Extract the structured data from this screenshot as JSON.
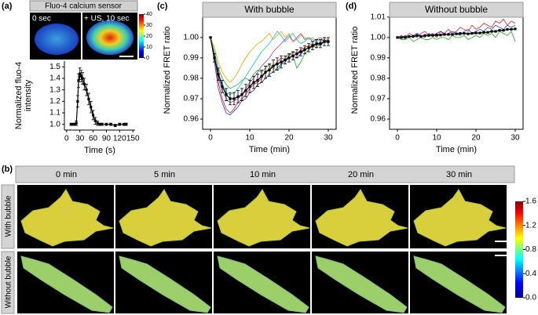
{
  "chart_data": [
    {
      "type": "line",
      "panel_label": "(a)",
      "x_label": "Time (s)",
      "y_label": [
        "Normalized fluo-4",
        "intensity"
      ],
      "x": [
        10,
        15,
        20,
        22,
        25,
        27,
        30,
        33,
        36,
        40,
        45,
        50,
        55,
        60,
        65,
        70,
        75,
        80,
        90,
        100,
        110,
        120,
        130,
        135
      ],
      "series": [
        {
          "color": "#000000",
          "marker": "square",
          "values": [
            1.0,
            1.0,
            1.0,
            1.01,
            1.2,
            1.38,
            1.44,
            1.42,
            1.4,
            1.35,
            1.3,
            1.22,
            1.15,
            1.08,
            1.03,
            1.01,
            1.0,
            1.0,
            1.0,
            1.0,
            0.99,
            1.0,
            1.0,
            1.0
          ],
          "errors": [
            0.01,
            0.01,
            0.01,
            0.02,
            0.05,
            0.06,
            0.05,
            0.05,
            0.05,
            0.05,
            0.05,
            0.05,
            0.05,
            0.04,
            0.03,
            0.02,
            0.01,
            0.01,
            0.01,
            0.01,
            0.01,
            0.01,
            0.01,
            0.01
          ]
        }
      ],
      "xlim": [
        -5,
        155
      ],
      "xticks": [
        0,
        30,
        60,
        90,
        120,
        150
      ],
      "ylim": [
        0.95,
        1.55
      ],
      "yticks": [
        {
          "value": 1.0,
          "label": "1.0"
        },
        1.1,
        1.2,
        1.3,
        1.4,
        1.5
      ],
      "box": false
    },
    {
      "type": "line",
      "panel_label": "(c)",
      "title": "With bubble",
      "x_label": "Time (min)",
      "y_label": "Normalized FRET ratio",
      "x": [
        0,
        1,
        2,
        3,
        4,
        5,
        6,
        7,
        8,
        9,
        10,
        11,
        12,
        13,
        14,
        15,
        16,
        17,
        18,
        19,
        20,
        21,
        22,
        23,
        24,
        25,
        26,
        27,
        28,
        29,
        30
      ],
      "series": [
        {
          "color": "#e41a1c",
          "values": [
            1.0,
            0.99,
            0.978,
            0.97,
            0.965,
            0.963,
            0.965,
            0.968,
            0.97,
            0.972,
            0.975,
            0.977,
            0.978,
            0.98,
            0.983,
            0.985,
            0.986,
            0.988,
            0.99,
            0.989,
            0.991,
            0.993,
            0.992,
            0.994,
            0.995,
            0.996,
            0.997,
            0.996,
            0.998,
            0.999,
            0.998
          ]
        },
        {
          "color": "#1f3fbf",
          "values": [
            1.0,
            0.988,
            0.975,
            0.968,
            0.963,
            0.962,
            0.964,
            0.966,
            0.969,
            0.97,
            0.973,
            0.974,
            0.977,
            0.978,
            0.98,
            0.982,
            0.983,
            0.985,
            0.987,
            0.988,
            0.99,
            0.991,
            0.99,
            0.992,
            0.994,
            0.995,
            0.995,
            0.997,
            0.996,
            0.998,
            0.999
          ]
        },
        {
          "color": "#2ca02c",
          "values": [
            1.0,
            0.993,
            0.985,
            0.98,
            0.977,
            0.975,
            0.976,
            0.977,
            0.979,
            0.98,
            0.979,
            0.982,
            0.984,
            0.983,
            0.985,
            0.987,
            0.985,
            0.984,
            0.986,
            0.99,
            0.992,
            0.991,
            0.985,
            0.988,
            0.992,
            0.994,
            0.996,
            0.995,
            0.997,
            0.998,
            0.998
          ]
        },
        {
          "color": "#e8a000",
          "values": [
            1.0,
            0.995,
            0.988,
            0.983,
            0.98,
            0.978,
            0.98,
            0.983,
            0.987,
            0.99,
            0.993,
            0.995,
            0.997,
            0.998,
            1.0,
            1.002,
            0.999,
            1.001,
            1.003,
            1.0,
            1.002,
            0.998,
            0.999,
            1.001,
            1.0,
            0.999,
            1.0,
            0.998,
            0.999,
            1.0,
            0.999
          ]
        },
        {
          "color": "#8e44ad",
          "values": [
            1.0,
            0.99,
            0.98,
            0.974,
            0.97,
            0.968,
            0.969,
            0.97,
            0.972,
            0.975,
            0.978,
            0.98,
            0.983,
            0.986,
            0.988,
            0.99,
            0.993,
            0.995,
            0.997,
            0.999,
            1.001,
            0.998,
            1.0,
            1.002,
            0.999,
            1.0,
            0.998,
            0.999,
            1.0,
            0.998,
            0.999
          ]
        },
        {
          "color": "#17becf",
          "values": [
            1.0,
            0.992,
            0.983,
            0.977,
            0.973,
            0.972,
            0.973,
            0.975,
            0.978,
            0.981,
            0.984,
            0.987,
            0.99,
            0.993,
            0.995,
            0.997,
            1.0,
            1.003,
            1.001,
            0.998,
            1.0,
            1.002,
            0.999,
            0.997,
            0.998,
            1.0,
            0.999,
            0.998,
            0.999,
            0.998,
            0.997
          ]
        },
        {
          "color": "#000000",
          "marker": "square",
          "values": [
            1.0,
            0.99,
            0.982,
            0.976,
            0.972,
            0.97,
            0.97,
            0.971,
            0.972,
            0.974,
            0.976,
            0.978,
            0.979,
            0.981,
            0.983,
            0.984,
            0.986,
            0.987,
            0.988,
            0.989,
            0.99,
            0.991,
            0.992,
            0.993,
            0.994,
            0.995,
            0.996,
            0.997,
            0.997,
            0.998,
            0.998
          ],
          "errors": [
            0,
            0.002,
            0.003,
            0.003,
            0.003,
            0.003,
            0.003,
            0.003,
            0.003,
            0.003,
            0.003,
            0.003,
            0.003,
            0.003,
            0.003,
            0.003,
            0.003,
            0.003,
            0.003,
            0.002,
            0.002,
            0.002,
            0.002,
            0.002,
            0.002,
            0.002,
            0.002,
            0.002,
            0.002,
            0.002,
            0.002
          ]
        }
      ],
      "xlim": [
        -2,
        32
      ],
      "xticks": [
        0,
        10,
        20,
        30
      ],
      "ylim": [
        0.955,
        1.013
      ],
      "yticks": [
        0.96,
        0.97,
        0.98,
        0.99,
        {
          "value": 1.0,
          "label": "1.00"
        }
      ],
      "box": true
    },
    {
      "type": "line",
      "panel_label": "(d)",
      "title": "Without bubble",
      "x_label": "Time (min)",
      "y_label": "Normalized FRET ratio",
      "x": [
        0,
        1,
        2,
        3,
        4,
        5,
        6,
        7,
        8,
        9,
        10,
        11,
        12,
        13,
        14,
        15,
        16,
        17,
        18,
        19,
        20,
        21,
        22,
        23,
        24,
        25,
        26,
        27,
        28,
        29,
        30
      ],
      "series": [
        {
          "color": "#e41a1c",
          "values": [
            1.0,
            1.001,
            1.0,
            1.002,
            1.001,
            1.0,
            1.002,
            1.003,
            1.001,
            1.002,
            1.0,
            1.003,
            1.002,
            1.004,
            1.002,
            1.003,
            1.005,
            1.004,
            1.003,
            1.006,
            1.004,
            1.005,
            1.007,
            1.006,
            1.005,
            1.008,
            1.007,
            1.009,
            1.006,
            1.008,
            1.007
          ]
        },
        {
          "color": "#2ca02c",
          "values": [
            1.0,
            0.999,
            0.999,
            1.0,
            0.998,
            0.999,
            1.0,
            0.999,
            0.999,
            1.0,
            0.999,
            1.0,
            1.0,
            0.999,
            1.001,
            1.0,
            1.0,
            1.001,
            0.999,
            1.0,
            1.001,
            1.0,
            1.002,
            1.001,
            1.002,
            1.0,
            1.003,
            1.002,
            1.001,
            1.003,
            0.998
          ]
        },
        {
          "color": "#1f3fbf",
          "values": [
            1.0,
            1.0,
            1.001,
            1.0,
            1.001,
            1.002,
            1.001,
            1.0,
            1.002,
            1.001,
            1.002,
            1.003,
            1.001,
            1.002,
            1.003,
            1.002,
            1.001,
            1.003,
            1.004,
            1.002,
            1.003,
            1.004,
            1.003,
            1.005,
            1.004,
            1.006,
            1.005,
            1.004,
            1.006,
            1.005,
            1.006
          ]
        },
        {
          "color": "#000000",
          "marker": "square",
          "values": [
            1.0,
            1.0,
            1.0,
            1.0005,
            1.0005,
            1.001,
            1.0005,
            1.001,
            1.001,
            1.001,
            1.0012,
            1.0012,
            1.0015,
            1.0015,
            1.0015,
            1.0018,
            1.002,
            1.002,
            1.0018,
            1.002,
            1.0022,
            1.0022,
            1.0025,
            1.0025,
            1.003,
            1.003,
            1.0035,
            1.0035,
            1.004,
            1.004,
            1.0042
          ]
        }
      ],
      "xlim": [
        -2,
        32
      ],
      "xticks": [
        0,
        10,
        20,
        30
      ],
      "ylim": [
        0.955,
        1.013
      ],
      "yticks": [
        0.96,
        0.97,
        0.98,
        0.99,
        {
          "value": 1.0,
          "label": "1.00"
        },
        1.01
      ],
      "box": true
    }
  ],
  "panel_a": {
    "image_title": "Fluo-4 calcium sensor",
    "image_labels": [
      "0 sec",
      "+ US, 10 sec"
    ],
    "colorbar_ticks": [
      0,
      10,
      20,
      30,
      40
    ]
  },
  "panel_b": {
    "label": "(b)",
    "time_points": [
      "0 min",
      "5 min",
      "10 min",
      "20 min",
      "30 min"
    ],
    "rows": [
      "With bubble",
      "Without bubble"
    ],
    "colorbar_ticks": [
      {
        "value": 0,
        "label": "0.0"
      },
      0.4,
      0.8,
      1.2,
      1.6
    ]
  }
}
